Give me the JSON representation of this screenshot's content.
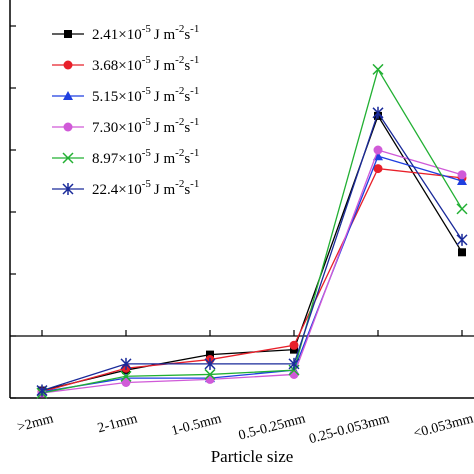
{
  "chart_data": {
    "type": "line",
    "title": "",
    "xlabel": "Particle size",
    "ylabel": "",
    "categories": [
      ">2mm",
      "2-1mm",
      "1-0.5mm",
      "0.5-0.25mm",
      "0.25-0.053mm",
      "<0.053mm"
    ],
    "ylim": [
      -1,
      5
    ],
    "yticks": [
      -1,
      0,
      1,
      2,
      3,
      4,
      5
    ],
    "zero_line": true,
    "grid": false,
    "legend_position": "top-left",
    "legend_unit_prefix": "×10",
    "legend_unit_exp1": "-5",
    "legend_unit_mid": "J m",
    "legend_unit_exp2": "-2",
    "legend_unit_s": "s",
    "legend_unit_exp3": "-1",
    "series": [
      {
        "name": "2.41",
        "color": "#000000",
        "marker": "square",
        "values": [
          -0.88,
          -0.55,
          -0.3,
          -0.22,
          3.55,
          1.35
        ]
      },
      {
        "name": "3.68",
        "color": "#e8202a",
        "marker": "circle",
        "values": [
          -0.9,
          -0.52,
          -0.38,
          -0.15,
          2.7,
          2.55
        ]
      },
      {
        "name": "5.15",
        "color": "#1f3fe0",
        "marker": "triangle",
        "values": [
          -0.9,
          -0.68,
          -0.68,
          -0.55,
          2.9,
          2.5
        ]
      },
      {
        "name": "7.30",
        "color": "#d05ad8",
        "marker": "circle",
        "values": [
          -0.92,
          -0.75,
          -0.7,
          -0.62,
          3.0,
          2.6
        ]
      },
      {
        "name": "8.97",
        "color": "#22b033",
        "marker": "x",
        "values": [
          -0.92,
          -0.65,
          -0.62,
          -0.55,
          4.3,
          2.05
        ]
      },
      {
        "name": "22.4",
        "color": "#1a2a9a",
        "marker": "star",
        "values": [
          -0.88,
          -0.45,
          -0.45,
          -0.45,
          3.6,
          1.55
        ]
      }
    ]
  }
}
